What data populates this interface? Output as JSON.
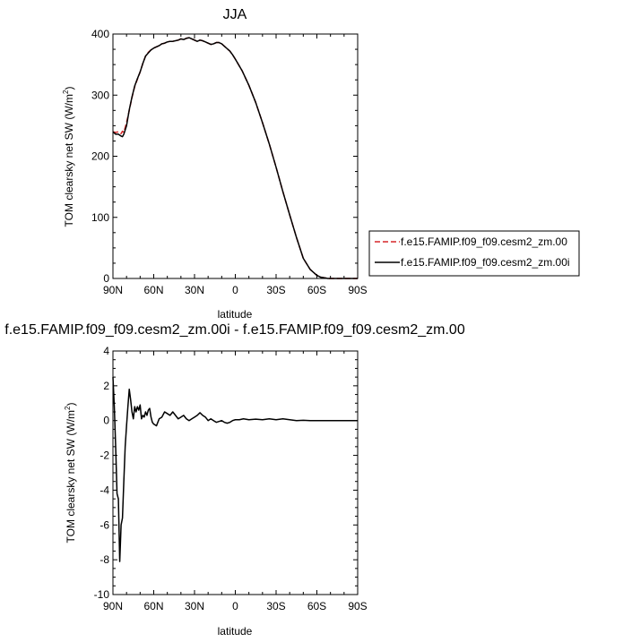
{
  "chart_data": [
    {
      "type": "line",
      "title": "JJA",
      "xlabel": "latitude",
      "ylabel": "TOM clearsky net SW (W/m",
      "ylabel_sup": "2",
      "ylabel_end": ")",
      "x_tick_labels": [
        "90N",
        "60N",
        "30N",
        "0",
        "30S",
        "60S",
        "90S"
      ],
      "xlim": [
        90,
        -90
      ],
      "ylim": [
        0,
        400
      ],
      "y_ticks": [
        0,
        100,
        200,
        300,
        400
      ],
      "legend_placement": "right",
      "series": [
        {
          "name": "f.e15.FAMIP.f09_f09.cesm2_zm.00",
          "color": "#d62728",
          "dash": true,
          "x": [
            90,
            88,
            86,
            84,
            83,
            82,
            80,
            78,
            76,
            74,
            72,
            70,
            68,
            66,
            64,
            62,
            60,
            58,
            56,
            54,
            52,
            50,
            48,
            46,
            44,
            42,
            40,
            38,
            36,
            34,
            32,
            30,
            28,
            26,
            24,
            22,
            20,
            18,
            16,
            14,
            12,
            10,
            8,
            6,
            4,
            2,
            0,
            -5,
            -10,
            -15,
            -20,
            -25,
            -30,
            -35,
            -40,
            -45,
            -50,
            -55,
            -60,
            -63,
            -66,
            -68,
            -70,
            -72,
            -75,
            -78,
            -80,
            -82,
            -85,
            -88,
            -90
          ],
          "y": [
            240,
            239,
            240,
            237,
            241,
            239,
            255,
            275,
            296,
            314,
            326,
            338,
            352,
            364,
            370,
            374,
            377,
            379,
            381,
            384,
            385,
            387,
            388,
            388,
            389,
            390,
            392,
            391,
            393,
            394,
            392,
            390,
            388,
            390,
            389,
            387,
            385,
            383,
            384,
            386,
            386,
            384,
            380,
            376,
            372,
            366,
            359,
            340,
            316,
            288,
            255,
            220,
            182,
            142,
            104,
            67,
            33,
            15,
            5,
            2,
            1,
            0,
            0,
            0,
            0,
            0,
            0,
            0,
            0,
            0,
            0
          ]
        },
        {
          "name": "f.e15.FAMIP.f09_f09.cesm2_zm.00i",
          "color": "#000000",
          "dash": false,
          "x": [
            90,
            88,
            86,
            84,
            83,
            82,
            80,
            78,
            76,
            74,
            72,
            70,
            68,
            66,
            64,
            62,
            60,
            58,
            56,
            54,
            52,
            50,
            48,
            46,
            44,
            42,
            40,
            38,
            36,
            34,
            32,
            30,
            28,
            26,
            24,
            22,
            20,
            18,
            16,
            14,
            12,
            10,
            8,
            6,
            4,
            2,
            0,
            -5,
            -10,
            -15,
            -20,
            -25,
            -30,
            -35,
            -40,
            -45,
            -50,
            -55,
            -60,
            -63,
            -66,
            -68,
            -70,
            -72,
            -75,
            -78,
            -80,
            -82,
            -85,
            -88,
            -90
          ],
          "y": [
            240,
            236,
            236,
            233,
            232,
            236,
            250,
            276,
            297,
            315,
            327,
            338,
            352,
            364,
            369,
            374,
            377,
            379,
            381,
            384,
            385,
            387,
            388,
            388,
            389,
            390,
            392,
            391,
            393,
            394,
            392,
            390,
            388,
            390,
            389,
            387,
            385,
            383,
            384,
            386,
            386,
            384,
            380,
            376,
            372,
            366,
            359,
            340,
            316,
            288,
            255,
            220,
            182,
            142,
            104,
            67,
            33,
            15,
            5,
            2,
            1,
            0,
            0,
            0,
            0,
            0,
            0,
            0,
            0,
            0,
            0
          ]
        }
      ]
    },
    {
      "type": "line",
      "title": "f.e15.FAMIP.f09_f09.cesm2_zm.00i - f.e15.FAMIP.f09_f09.cesm2_zm.00",
      "xlabel": "latitude",
      "ylabel": "TOM clearsky net SW (W/m",
      "ylabel_sup": "2",
      "ylabel_end": ")",
      "x_tick_labels": [
        "90N",
        "60N",
        "30N",
        "0",
        "30S",
        "60S",
        "90S"
      ],
      "xlim": [
        90,
        -90
      ],
      "ylim": [
        -10,
        4
      ],
      "y_ticks": [
        -10,
        -8,
        -6,
        -4,
        -2,
        0,
        2,
        4
      ],
      "series": [
        {
          "color": "#000000",
          "x": [
            90,
            89,
            88,
            87,
            86,
            85,
            84,
            83,
            82,
            81,
            80,
            79,
            78,
            77,
            76,
            75,
            74,
            73,
            72,
            71,
            70,
            69,
            68,
            67,
            66,
            65,
            64,
            63,
            62,
            61,
            60,
            58,
            56,
            54,
            52,
            50,
            48,
            46,
            44,
            42,
            40,
            38,
            36,
            34,
            32,
            30,
            28,
            26,
            24,
            22,
            20,
            18,
            16,
            14,
            12,
            10,
            8,
            6,
            4,
            2,
            0,
            -3,
            -6,
            -10,
            -15,
            -20,
            -25,
            -30,
            -35,
            -40,
            -45,
            -50,
            -55,
            -60,
            -65,
            -70,
            -75,
            -80,
            -85,
            -90
          ],
          "y": [
            2.5,
            0.8,
            -1.5,
            -4.2,
            -4.5,
            -8.1,
            -6.0,
            -5.6,
            -3.5,
            -1.5,
            -0.3,
            0.8,
            1.8,
            1.2,
            0.5,
            0.1,
            0.8,
            0.5,
            0.8,
            0.6,
            0.9,
            0.1,
            0.3,
            0.2,
            0.5,
            0.3,
            0.6,
            0.7,
            0.2,
            -0.1,
            -0.2,
            -0.3,
            0.1,
            0.2,
            0.5,
            0.4,
            0.3,
            0.5,
            0.3,
            0.1,
            0.2,
            0.3,
            0.1,
            0.0,
            0.1,
            0.2,
            0.3,
            0.45,
            0.3,
            0.2,
            0.0,
            0.1,
            0.0,
            -0.1,
            -0.05,
            0.0,
            -0.1,
            -0.15,
            -0.1,
            0.0,
            0.05,
            0.05,
            0.1,
            0.05,
            0.08,
            0.05,
            0.1,
            0.05,
            0.1,
            0.05,
            0.0,
            0.02,
            0.0,
            0.0,
            0.0,
            0.0,
            0.0,
            0.0,
            0.0,
            0.0
          ]
        }
      ]
    }
  ]
}
